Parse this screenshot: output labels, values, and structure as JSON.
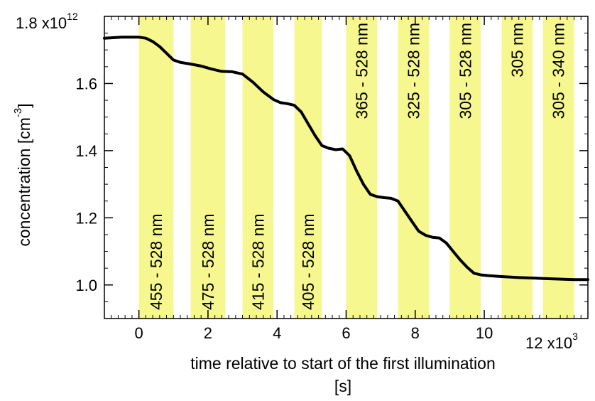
{
  "chart_data": {
    "type": "line",
    "xlabel": "time relative to start of the first illumination",
    "xunit": "[s]",
    "ylabel": "concentration [cm",
    "ylabel_sup": "-3",
    "ylabel_end": "]",
    "x_multiplier": {
      "base": "12 x10",
      "exp": "3"
    },
    "y_multiplier": {
      "base": "1.8 x10",
      "exp": "12"
    },
    "xlim": [
      -1000,
      13000
    ],
    "ylim": [
      0.9,
      1.8
    ],
    "x_ticks": [
      0,
      2000,
      4000,
      6000,
      8000,
      10000
    ],
    "x_tick_labels": [
      "0",
      "2",
      "4",
      "6",
      "8",
      "10"
    ],
    "y_ticks": [
      1.0,
      1.2,
      1.4,
      1.6
    ],
    "y_tick_labels": [
      "1.0",
      "1.2",
      "1.4",
      "1.6"
    ],
    "band_color": "#f7f78f",
    "line_color": "#000000",
    "illumination_bands": [
      {
        "start": 0,
        "end": 1000,
        "label": "455 - 528 nm",
        "label_pos": "bottom"
      },
      {
        "start": 1500,
        "end": 2500,
        "label": "475 - 528 nm",
        "label_pos": "bottom"
      },
      {
        "start": 3000,
        "end": 3900,
        "label": "415 - 528 nm",
        "label_pos": "bottom"
      },
      {
        "start": 4500,
        "end": 5300,
        "label": "405 - 528 nm",
        "label_pos": "bottom"
      },
      {
        "start": 6000,
        "end": 6900,
        "label": "365 - 528 nm",
        "label_pos": "top"
      },
      {
        "start": 7500,
        "end": 8400,
        "label": "325 - 528 nm",
        "label_pos": "top"
      },
      {
        "start": 9000,
        "end": 9900,
        "label": "305 - 528 nm",
        "label_pos": "top"
      },
      {
        "start": 10500,
        "end": 11400,
        "label": "305 nm",
        "label_pos": "top"
      },
      {
        "start": 11700,
        "end": 12600,
        "label": "305 - 340 nm",
        "label_pos": "top"
      }
    ],
    "series": [
      {
        "x": [
          -1000,
          -500,
          0,
          200,
          400,
          600,
          800,
          1000,
          1200,
          1500,
          1800,
          2100,
          2400,
          2700,
          3000,
          3300,
          3600,
          3900,
          4100,
          4300,
          4500,
          4700,
          4900,
          5100,
          5300,
          5500,
          5700,
          5900,
          6100,
          6300,
          6500,
          6700,
          6900,
          7100,
          7300,
          7500,
          7700,
          7900,
          8100,
          8300,
          8500,
          8700,
          8900,
          9100,
          9300,
          9500,
          9700,
          9900,
          10100,
          10500,
          11000,
          11500,
          12000,
          12600,
          13000
        ],
        "y": [
          1.735,
          1.738,
          1.738,
          1.735,
          1.725,
          1.71,
          1.69,
          1.67,
          1.663,
          1.658,
          1.652,
          1.643,
          1.636,
          1.635,
          1.628,
          1.604,
          1.575,
          1.552,
          1.543,
          1.54,
          1.535,
          1.515,
          1.48,
          1.445,
          1.415,
          1.407,
          1.403,
          1.405,
          1.385,
          1.34,
          1.3,
          1.27,
          1.263,
          1.26,
          1.258,
          1.25,
          1.22,
          1.19,
          1.16,
          1.148,
          1.142,
          1.14,
          1.125,
          1.1,
          1.075,
          1.053,
          1.035,
          1.03,
          1.028,
          1.025,
          1.022,
          1.02,
          1.018,
          1.016,
          1.016
        ]
      }
    ]
  }
}
